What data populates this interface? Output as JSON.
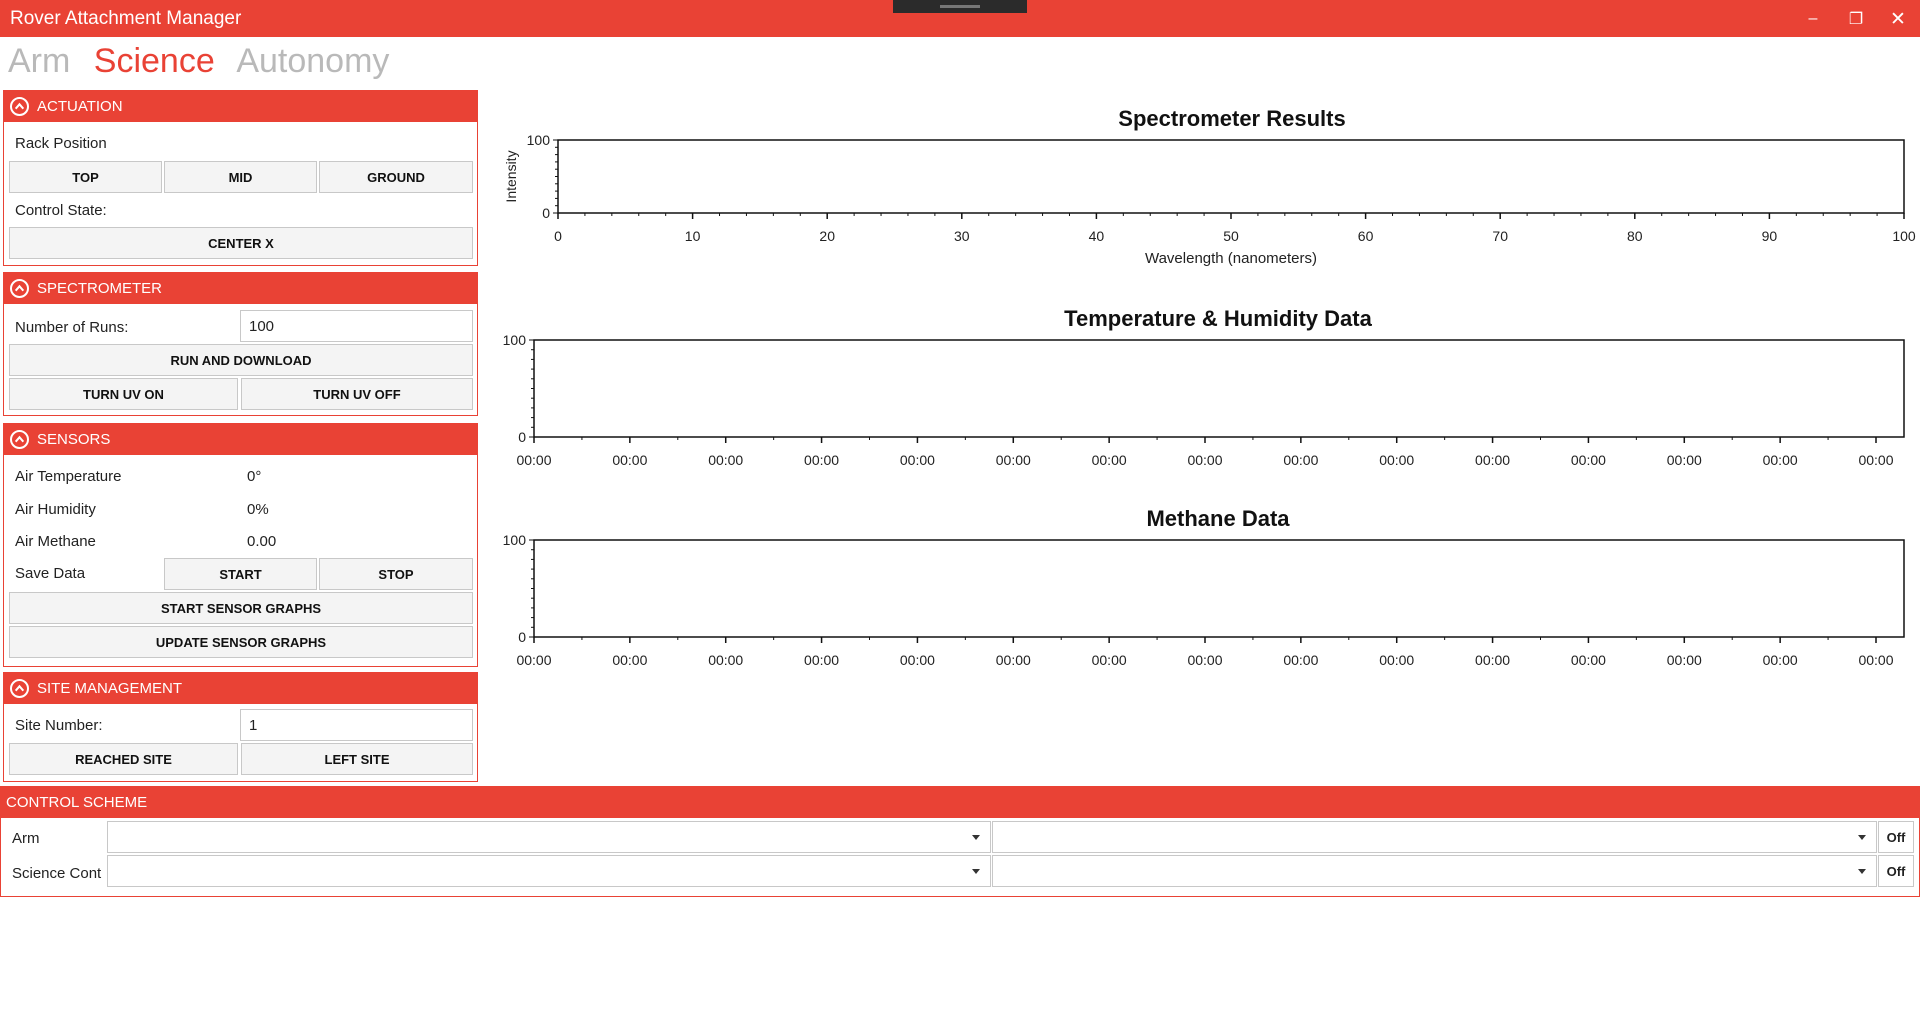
{
  "window": {
    "title": "Rover Attachment Manager",
    "minimize_glyph": "–",
    "restore_glyph": "❐",
    "close_glyph": "✕"
  },
  "tabs": [
    {
      "label": "Arm",
      "active": false
    },
    {
      "label": "Science",
      "active": true
    },
    {
      "label": "Autonomy",
      "active": false
    }
  ],
  "actuation": {
    "header": "ACTUATION",
    "rack_position_label": "Rack Position",
    "buttons": {
      "top": "TOP",
      "mid": "MID",
      "ground": "GROUND"
    },
    "control_state_label": "Control State:",
    "center_x": "CENTER X"
  },
  "spectrometer": {
    "header": "SPECTROMETER",
    "runs_label": "Number of Runs:",
    "runs_value": "100",
    "run_download": "RUN AND DOWNLOAD",
    "uv_on": "TURN UV ON",
    "uv_off": "TURN UV OFF"
  },
  "sensors": {
    "header": "SENSORS",
    "air_temp_label": "Air Temperature",
    "air_temp_value": "0°",
    "air_humidity_label": "Air Humidity",
    "air_humidity_value": "0%",
    "air_methane_label": "Air Methane",
    "air_methane_value": "0.00",
    "save_data_label": "Save Data",
    "start": "START",
    "stop": "STOP",
    "start_graphs": "START SENSOR GRAPHS",
    "update_graphs": "UPDATE SENSOR GRAPHS"
  },
  "site": {
    "header": "SITE MANAGEMENT",
    "site_label": "Site Number:",
    "site_value": "1",
    "reached": "REACHED SITE",
    "left": "LEFT SITE"
  },
  "control_scheme": {
    "header": "CONTROL SCHEME",
    "rows": [
      {
        "label": "Arm",
        "off": "Off"
      },
      {
        "label": "Science Conti",
        "off": "Off"
      }
    ]
  },
  "colors": {
    "accent": "#e94235",
    "inactive_tab": "#b9b9b9"
  },
  "chart_data": [
    {
      "type": "line",
      "title": "Spectrometer Results",
      "xlabel": "Wavelength (nanometers)",
      "ylabel": "Intensity",
      "xlim": [
        0,
        100
      ],
      "ylim": [
        0,
        100
      ],
      "xticks": [
        "0",
        "10",
        "20",
        "30",
        "40",
        "50",
        "60",
        "70",
        "80",
        "90",
        "100"
      ],
      "yticks": [
        "0",
        "100"
      ],
      "series": []
    },
    {
      "type": "line",
      "title": "Temperature & Humidity Data",
      "xlabel": "",
      "ylabel": "",
      "ylim": [
        0,
        100
      ],
      "xticks": [
        "00:00",
        "00:00",
        "00:00",
        "00:00",
        "00:00",
        "00:00",
        "00:00",
        "00:00",
        "00:00",
        "00:00",
        "00:00",
        "00:00",
        "00:00",
        "00:00",
        "00:00"
      ],
      "yticks": [
        "0",
        "100"
      ],
      "series": []
    },
    {
      "type": "line",
      "title": "Methane Data",
      "xlabel": "",
      "ylabel": "",
      "ylim": [
        0,
        100
      ],
      "xticks": [
        "00:00",
        "00:00",
        "00:00",
        "00:00",
        "00:00",
        "00:00",
        "00:00",
        "00:00",
        "00:00",
        "00:00",
        "00:00",
        "00:00",
        "00:00",
        "00:00",
        "00:00"
      ],
      "yticks": [
        "0",
        "100"
      ],
      "series": []
    }
  ]
}
